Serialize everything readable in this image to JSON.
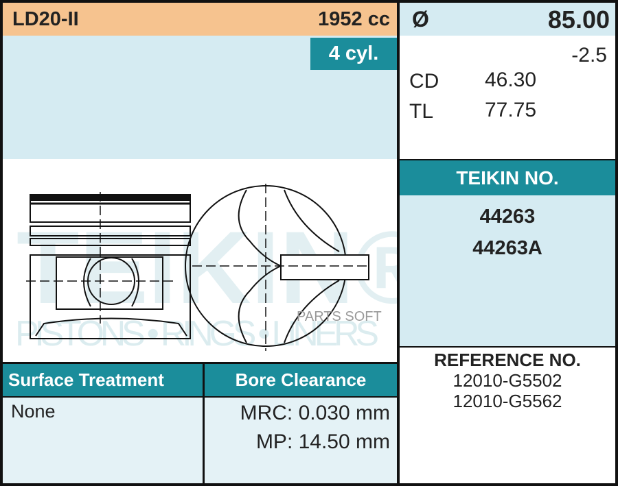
{
  "header": {
    "model": "LD20-II",
    "displacement": "1952 cc",
    "cylinders": "4 cyl."
  },
  "dimensions": {
    "diameter_symbol": "Ø",
    "diameter": "85.00",
    "oversize": "-2.5",
    "cd_label": "CD",
    "cd_value": "46.30",
    "tl_label": "TL",
    "tl_value": "77.75"
  },
  "teikin": {
    "title": "TEIKIN NO.",
    "numbers": [
      "44263",
      "44263A"
    ]
  },
  "reference": {
    "title": "REFERENCE NO.",
    "numbers": [
      "12010-G5502",
      "12010-G5562"
    ]
  },
  "table": {
    "col1_header": "Surface Treatment",
    "col2_header": "Bore Clearance",
    "surface_treatment": "None",
    "mrc": "MRC: 0.030 mm",
    "mp": "MP: 14.50 mm"
  },
  "watermark": {
    "brand": "TEIKIN®",
    "tagline": "PISTONS • RINGS • LINERS",
    "overlay": "PARTS SOFT"
  },
  "colors": {
    "orange": "#f6c38f",
    "light_blue": "#d5ebf2",
    "teal": "#1b8d9b"
  }
}
